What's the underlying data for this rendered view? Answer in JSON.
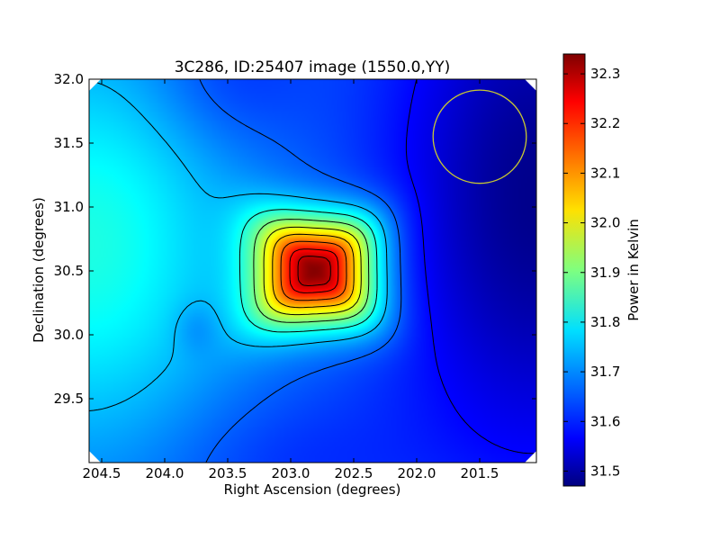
{
  "chart_data": {
    "type": "heatmap",
    "title": "3C286, ID:25407 image (1550.0,YY)",
    "xlabel": "Right Ascension (degrees)",
    "ylabel": "Declination (degrees)",
    "xlim": [
      204.6,
      201.05
    ],
    "ylim": [
      29.0,
      32.0
    ],
    "x_ticks": [
      204.5,
      204.0,
      203.5,
      203.0,
      202.5,
      202.0,
      201.5
    ],
    "x_tick_labels": [
      "204.5",
      "204.0",
      "203.5",
      "203.0",
      "202.5",
      "202.0",
      "201.5"
    ],
    "y_ticks": [
      29.5,
      30.0,
      30.5,
      31.0,
      31.5,
      32.0
    ],
    "y_tick_labels": [
      "29.5",
      "30.0",
      "30.5",
      "31.0",
      "31.5",
      "32.0"
    ],
    "colorbar": {
      "label": "Power in Kelvin",
      "range": [
        31.47,
        32.34
      ],
      "ticks": [
        31.5,
        31.6,
        31.7,
        31.8,
        31.9,
        32.0,
        32.1,
        32.2,
        32.3
      ],
      "tick_labels": [
        "31.5",
        "31.6",
        "31.7",
        "31.8",
        "31.9",
        "32.0",
        "32.1",
        "32.2",
        "32.3"
      ],
      "colormap": "jet"
    },
    "peak": {
      "ra": 202.8,
      "dec": 30.5,
      "value": 32.34
    },
    "min_value": 31.47,
    "contour_levels": [
      31.58,
      31.66,
      31.74,
      31.82,
      31.9,
      31.98,
      32.06,
      32.14,
      32.22,
      32.28
    ],
    "beam_circle": {
      "ra": 201.5,
      "dec": 31.55,
      "radius_deg": 0.37,
      "color": "#c8c832"
    },
    "grid": false
  }
}
